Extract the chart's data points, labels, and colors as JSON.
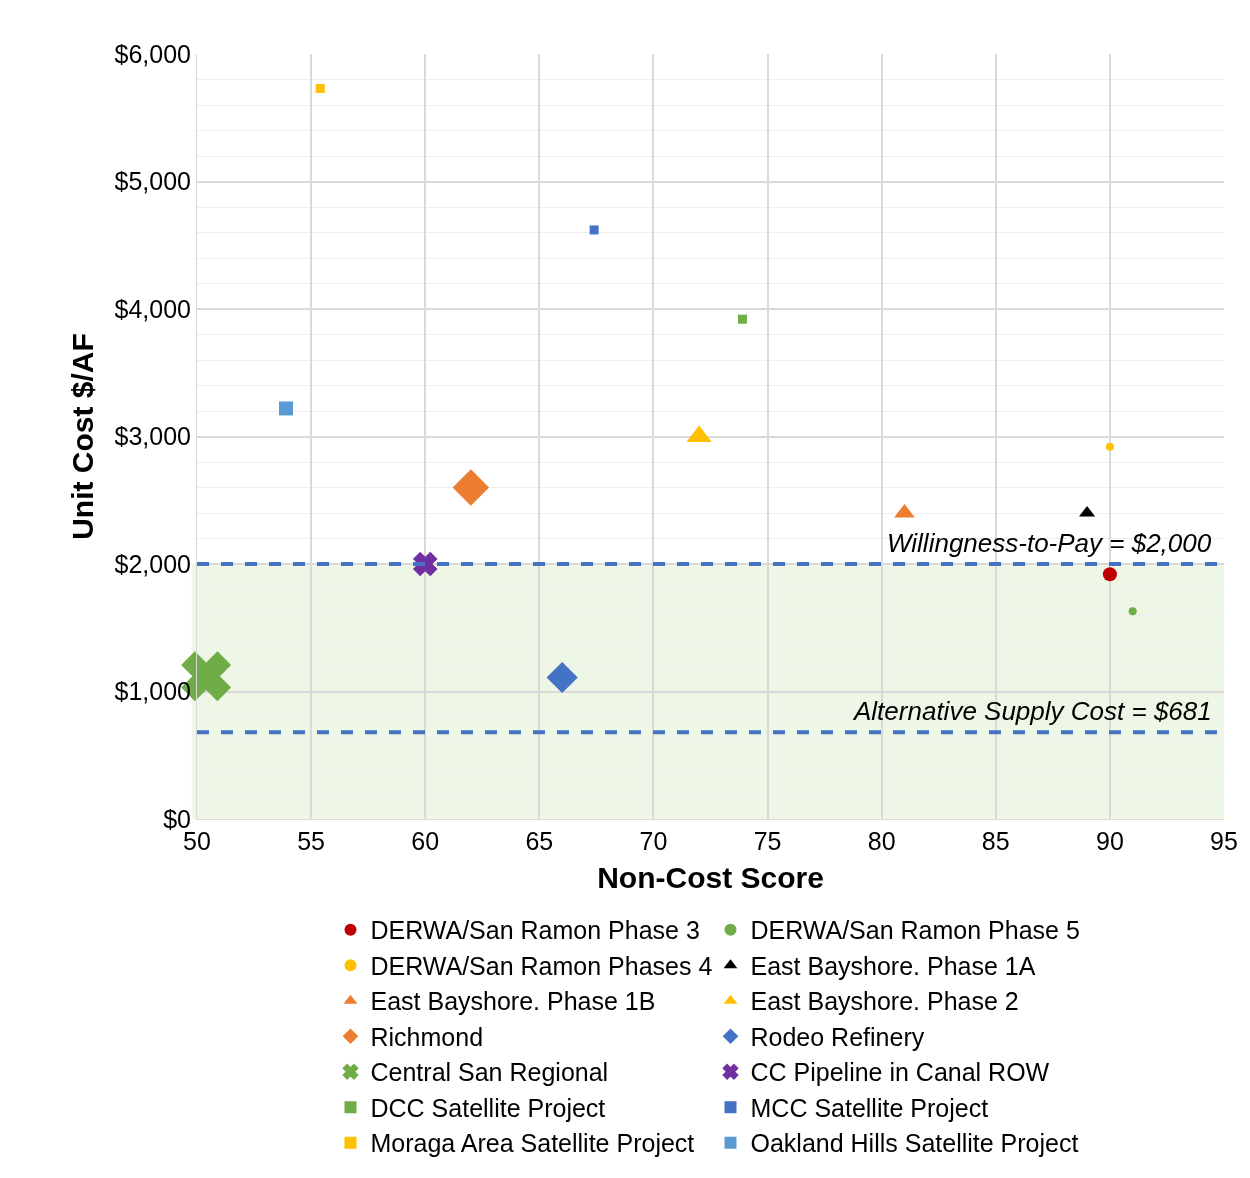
{
  "chart_data": {
    "type": "scatter",
    "xlabel": "Non-Cost Score",
    "ylabel": "Unit Cost $/AF",
    "xlim": [
      50,
      95
    ],
    "xticks": [
      50,
      55,
      60,
      65,
      70,
      75,
      80,
      85,
      90,
      95
    ],
    "ylim": [
      0,
      6000
    ],
    "yticks": [
      {
        "value": 0,
        "label": "$0"
      },
      {
        "value": 1000,
        "label": "$1,000"
      },
      {
        "value": 2000,
        "label": "$2,000"
      },
      {
        "value": 3000,
        "label": "$3,000"
      },
      {
        "value": 4000,
        "label": "$4,000"
      },
      {
        "value": 5000,
        "label": "$5,000"
      },
      {
        "value": 6000,
        "label": "$6,000"
      }
    ],
    "grid": true,
    "legend": "bottom",
    "series": [
      {
        "name": "DERWA/San Ramon Phase 3",
        "color": "#c00000",
        "marker": "circle",
        "x": [
          90
        ],
        "values": [
          1920
        ]
      },
      {
        "name": "DERWA/San Ramon Phase 5",
        "color": "#70ad47",
        "marker": "circle",
        "x": [
          91
        ],
        "values": [
          1630
        ]
      },
      {
        "name": "DERWA/San Ramon Phases 4",
        "color": "#ffc000",
        "marker": "circle",
        "x": [
          90
        ],
        "values": [
          2920
        ]
      },
      {
        "name": "East Bayshore. Phase 1A",
        "color": "#000000",
        "marker": "triangle",
        "x": [
          89
        ],
        "values": [
          2400
        ]
      },
      {
        "name": "East Bayshore. Phase 1B",
        "color": "#ed7d31",
        "marker": "triangle",
        "x": [
          81
        ],
        "values": [
          2400
        ]
      },
      {
        "name": "East Bayshore. Phase 2",
        "color": "#ffc000",
        "marker": "triangle",
        "x": [
          72
        ],
        "values": [
          3000
        ]
      },
      {
        "name": "Richmond",
        "color": "#ed7d31",
        "marker": "diamond",
        "x": [
          62
        ],
        "values": [
          2600
        ]
      },
      {
        "name": "Rodeo Refinery",
        "color": "#4472c4",
        "marker": "diamond",
        "x": [
          66
        ],
        "values": [
          1110
        ]
      },
      {
        "name": "Central San Regional",
        "color": "#70ad47",
        "marker": "cross",
        "x": [
          50.4
        ],
        "values": [
          1120
        ]
      },
      {
        "name": "CC Pipeline in Canal ROW",
        "color": "#7030a0",
        "marker": "cross",
        "x": [
          60
        ],
        "values": [
          2000
        ]
      },
      {
        "name": "DCC Satellite Project",
        "color": "#70ad47",
        "marker": "square",
        "x": [
          73.9
        ],
        "values": [
          3920
        ]
      },
      {
        "name": "MCC Satellite Project",
        "color": "#4472c4",
        "marker": "square",
        "x": [
          67.4
        ],
        "values": [
          4620
        ]
      },
      {
        "name": "Moraga Area Satellite Project",
        "color": "#ffc000",
        "marker": "square",
        "x": [
          55.4
        ],
        "values": [
          5730
        ]
      },
      {
        "name": "Oakland Hills Satellite Project",
        "color": "#5b9bd5",
        "marker": "square",
        "x": [
          53.9
        ],
        "values": [
          3220
        ]
      }
    ],
    "ref_lines": [
      {
        "axis": "y",
        "value": 2000,
        "label": "Willingness-to-Pay = $2,000",
        "color": "#4472c4",
        "line_style": "dashed"
      },
      {
        "axis": "y",
        "value": 681,
        "label": "Alternative Supply Cost = $681",
        "color": "#4472c4",
        "line_style": "dashed"
      }
    ],
    "bands": [
      {
        "axis": "y",
        "from": 0,
        "to": 2000,
        "color": "#eef6e6"
      }
    ]
  }
}
